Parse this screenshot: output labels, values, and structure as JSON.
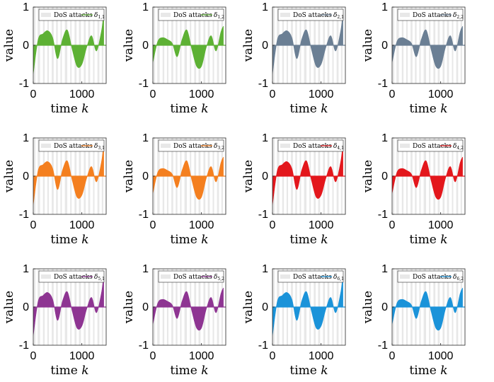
{
  "figure": {
    "title": "",
    "attack_label": "DoS attacks",
    "xlabel": "time",
    "xlabel_var": "k",
    "ylabel": "value",
    "xlim": [
      0,
      1500
    ],
    "ylim": [
      -1,
      1
    ],
    "xticks": [
      "0",
      "1000"
    ],
    "yticks": [
      "-1",
      "0",
      "1"
    ],
    "attack_color": "#e8e8e8"
  },
  "chart_data": [
    {
      "type": "area",
      "series": "δ1,1",
      "sym": "δ",
      "sub": "1,1",
      "color": "#5db134",
      "x": [
        0,
        100,
        200,
        300,
        400,
        500,
        600,
        700,
        800,
        900,
        1000,
        1100,
        1200,
        1300,
        1400,
        1450
      ],
      "values": [
        -0.75,
        0.15,
        0.3,
        0.38,
        0.2,
        -0.35,
        0.15,
        0.4,
        -0.1,
        -0.55,
        -0.5,
        -0.05,
        0.25,
        -0.15,
        0.35,
        0.8
      ]
    },
    {
      "type": "area",
      "series": "δ1,2",
      "sym": "δ",
      "sub": "1,2",
      "color": "#5db134",
      "x": [
        0,
        100,
        200,
        300,
        400,
        500,
        600,
        700,
        800,
        900,
        1000,
        1100,
        1200,
        1300,
        1400,
        1450
      ],
      "values": [
        -0.45,
        0.1,
        0.2,
        0.15,
        0.05,
        -0.3,
        0.15,
        0.4,
        -0.1,
        -0.55,
        -0.55,
        -0.05,
        0.25,
        -0.15,
        0.35,
        0.5
      ]
    },
    {
      "type": "area",
      "series": "δ2,1",
      "sym": "δ",
      "sub": "2,1",
      "color": "#6b7f94",
      "x": [
        0,
        100,
        200,
        300,
        400,
        500,
        600,
        700,
        800,
        900,
        1000,
        1100,
        1200,
        1300,
        1400,
        1450
      ],
      "values": [
        -0.75,
        0.15,
        0.3,
        0.38,
        0.2,
        -0.35,
        0.15,
        0.4,
        -0.1,
        -0.55,
        -0.5,
        -0.05,
        0.25,
        -0.15,
        0.35,
        0.8
      ]
    },
    {
      "type": "area",
      "series": "δ2,2",
      "sym": "δ",
      "sub": "2,2",
      "color": "#6b7f94",
      "x": [
        0,
        100,
        200,
        300,
        400,
        500,
        600,
        700,
        800,
        900,
        1000,
        1100,
        1200,
        1300,
        1400,
        1450
      ],
      "values": [
        -0.45,
        0.1,
        0.2,
        0.15,
        0.05,
        -0.3,
        0.15,
        0.4,
        -0.1,
        -0.55,
        -0.55,
        -0.05,
        0.25,
        -0.15,
        0.35,
        0.5
      ]
    },
    {
      "type": "area",
      "series": "δ3,1",
      "sym": "δ",
      "sub": "3,1",
      "color": "#f47f1f",
      "x": [
        0,
        100,
        200,
        300,
        400,
        500,
        600,
        700,
        800,
        900,
        1000,
        1100,
        1200,
        1300,
        1400,
        1450
      ],
      "values": [
        -0.75,
        0.15,
        0.3,
        0.38,
        0.2,
        -0.35,
        0.15,
        0.4,
        -0.1,
        -0.55,
        -0.5,
        -0.05,
        0.25,
        -0.15,
        0.35,
        0.8
      ]
    },
    {
      "type": "area",
      "series": "δ3,2",
      "sym": "δ",
      "sub": "3,2",
      "color": "#f47f1f",
      "x": [
        0,
        100,
        200,
        300,
        400,
        500,
        600,
        700,
        800,
        900,
        1000,
        1100,
        1200,
        1300,
        1400,
        1450
      ],
      "values": [
        -0.45,
        0.1,
        0.2,
        0.15,
        0.05,
        -0.3,
        0.15,
        0.4,
        -0.1,
        -0.55,
        -0.55,
        -0.05,
        0.25,
        -0.15,
        0.35,
        0.5
      ]
    },
    {
      "type": "area",
      "series": "δ4,1",
      "sym": "δ",
      "sub": "4,1",
      "color": "#e3171c",
      "x": [
        0,
        100,
        200,
        300,
        400,
        500,
        600,
        700,
        800,
        900,
        1000,
        1100,
        1200,
        1300,
        1400,
        1450
      ],
      "values": [
        -0.75,
        0.15,
        0.3,
        0.38,
        0.2,
        -0.35,
        0.15,
        0.4,
        -0.1,
        -0.55,
        -0.5,
        -0.05,
        0.25,
        -0.15,
        0.35,
        0.8
      ]
    },
    {
      "type": "area",
      "series": "δ4,2",
      "sym": "δ",
      "sub": "4,2",
      "color": "#e3171c",
      "x": [
        0,
        100,
        200,
        300,
        400,
        500,
        600,
        700,
        800,
        900,
        1000,
        1100,
        1200,
        1300,
        1400,
        1450
      ],
      "values": [
        -0.45,
        0.1,
        0.2,
        0.15,
        0.05,
        -0.3,
        0.15,
        0.4,
        -0.1,
        -0.55,
        -0.55,
        -0.05,
        0.25,
        -0.15,
        0.35,
        0.5
      ]
    },
    {
      "type": "area",
      "series": "δ5,1",
      "sym": "δ",
      "sub": "5,1",
      "color": "#8e3592",
      "x": [
        0,
        100,
        200,
        300,
        400,
        500,
        600,
        700,
        800,
        900,
        1000,
        1100,
        1200,
        1300,
        1400,
        1450
      ],
      "values": [
        -0.75,
        0.15,
        0.3,
        0.38,
        0.2,
        -0.35,
        0.15,
        0.4,
        -0.1,
        -0.55,
        -0.5,
        -0.05,
        0.25,
        -0.15,
        0.35,
        0.8
      ]
    },
    {
      "type": "area",
      "series": "δ5,2",
      "sym": "δ",
      "sub": "5,2",
      "color": "#8e3592",
      "x": [
        0,
        100,
        200,
        300,
        400,
        500,
        600,
        700,
        800,
        900,
        1000,
        1100,
        1200,
        1300,
        1400,
        1450
      ],
      "values": [
        -0.45,
        0.1,
        0.2,
        0.15,
        0.05,
        -0.3,
        0.15,
        0.4,
        -0.1,
        -0.55,
        -0.55,
        -0.05,
        0.25,
        -0.15,
        0.35,
        0.5
      ]
    },
    {
      "type": "area",
      "series": "δ6,1",
      "sym": "δ",
      "sub": "6,1",
      "color": "#1b93d9",
      "x": [
        0,
        100,
        200,
        300,
        400,
        500,
        600,
        700,
        800,
        900,
        1000,
        1100,
        1200,
        1300,
        1400,
        1450
      ],
      "values": [
        -0.75,
        0.15,
        0.3,
        0.38,
        0.2,
        -0.35,
        0.15,
        0.4,
        -0.1,
        -0.55,
        -0.5,
        -0.05,
        0.25,
        -0.15,
        0.35,
        0.8
      ]
    },
    {
      "type": "area",
      "series": "δ6,2",
      "sym": "δ",
      "sub": "6,2",
      "color": "#1b93d9",
      "x": [
        0,
        100,
        200,
        300,
        400,
        500,
        600,
        700,
        800,
        900,
        1000,
        1100,
        1200,
        1300,
        1400,
        1450
      ],
      "values": [
        -0.45,
        0.1,
        0.2,
        0.15,
        0.05,
        -0.3,
        0.15,
        0.4,
        -0.1,
        -0.55,
        -0.55,
        -0.05,
        0.25,
        -0.15,
        0.35,
        0.5
      ]
    }
  ]
}
